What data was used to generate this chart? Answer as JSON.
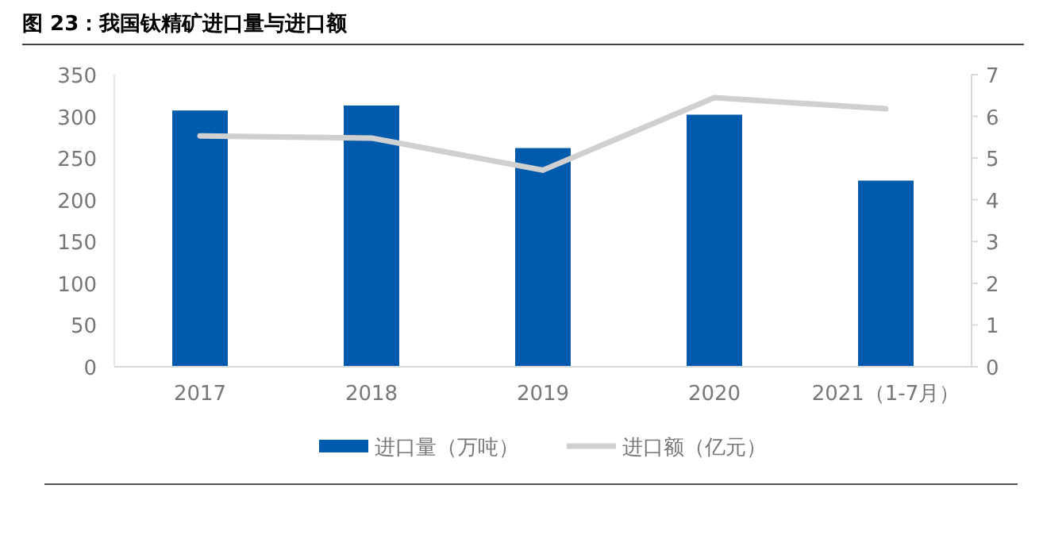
{
  "chart_data": {
    "type": "bar",
    "title": "图 23：我国钛精矿进口量与进口额",
    "categories": [
      "2017",
      "2018",
      "2019",
      "2020",
      "2021（1-7月）"
    ],
    "series": [
      {
        "name": "进口量（万吨）",
        "color": "#005bac",
        "values": [
          307,
          313,
          262,
          302,
          223
        ]
      },
      {
        "name": "进口额（亿元）",
        "type": "line",
        "axis": "y2",
        "color": "#d0d0d0",
        "values": [
          5.53,
          5.48,
          4.71,
          6.45,
          6.18
        ]
      }
    ],
    "ylim": [
      0,
      350
    ],
    "yticks": [
      0,
      50,
      100,
      150,
      200,
      250,
      300,
      350
    ],
    "y2lim": [
      0,
      7
    ],
    "y2ticks": [
      0,
      1,
      2,
      3,
      4,
      5,
      6,
      7
    ],
    "legend": "bottom",
    "grid": false
  }
}
